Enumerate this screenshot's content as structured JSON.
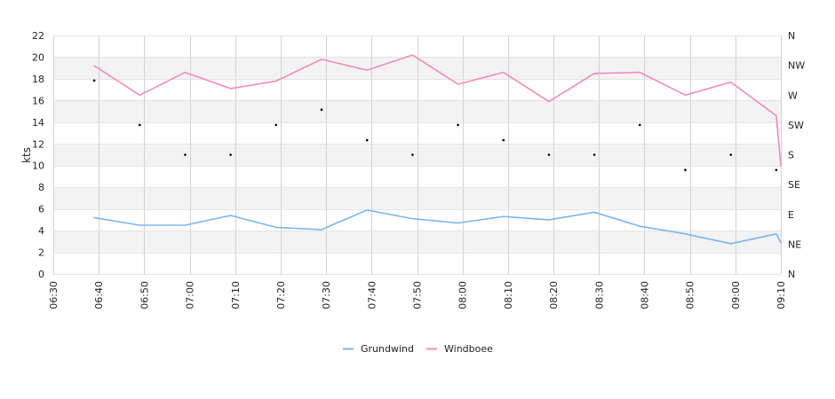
{
  "chart_data": {
    "type": "line",
    "ylabel": "kts",
    "ylim": [
      0,
      22
    ],
    "yticks": [
      "0",
      "2",
      "4",
      "6",
      "8",
      "10",
      "12",
      "14",
      "16",
      "18",
      "20",
      "22"
    ],
    "xlabels": [
      "06:30",
      "06:40",
      "06:50",
      "07:00",
      "07:10",
      "07:20",
      "07:30",
      "07:40",
      "07:50",
      "08:00",
      "08:10",
      "08:20",
      "08:30",
      "08:40",
      "08:50",
      "09:00",
      "09:10"
    ],
    "right_axis": {
      "labels": [
        "N",
        "NE",
        "E",
        "SE",
        "S",
        "SW",
        "W",
        "NW",
        "N"
      ],
      "range_degrees": [
        0,
        360
      ]
    },
    "grid": true,
    "legend": "bottom-center",
    "x_times": [
      "06:39",
      "06:49",
      "06:59",
      "07:09",
      "07:19",
      "07:29",
      "07:39",
      "07:49",
      "07:59",
      "08:09",
      "08:19",
      "08:29",
      "08:39",
      "08:49",
      "08:59",
      "09:09",
      "09:10"
    ],
    "series": [
      {
        "name": "Grundwind",
        "color": "#7cb5ec",
        "values": [
          5.2,
          4.5,
          4.5,
          5.4,
          4.3,
          4.1,
          5.9,
          5.1,
          4.7,
          5.3,
          5.0,
          5.7,
          4.4,
          3.7,
          2.8,
          3.7,
          2.9
        ]
      },
      {
        "name": "Windboee",
        "color": "#f08cba",
        "values": [
          19.2,
          16.5,
          18.6,
          17.1,
          17.8,
          19.8,
          18.8,
          20.2,
          17.5,
          18.6,
          15.9,
          18.5,
          18.6,
          16.5,
          17.7,
          14.6,
          10.0
        ]
      }
    ],
    "direction_points": {
      "color": "#000000",
      "times": [
        "06:39",
        "06:49",
        "06:59",
        "07:09",
        "07:19",
        "07:29",
        "07:39",
        "07:49",
        "07:59",
        "08:09",
        "08:19",
        "08:29",
        "08:39",
        "08:49",
        "08:59",
        "09:09"
      ],
      "degrees": [
        292,
        225,
        180,
        180,
        225,
        248,
        202,
        180,
        225,
        202,
        180,
        180,
        225,
        157,
        180,
        157
      ]
    }
  }
}
